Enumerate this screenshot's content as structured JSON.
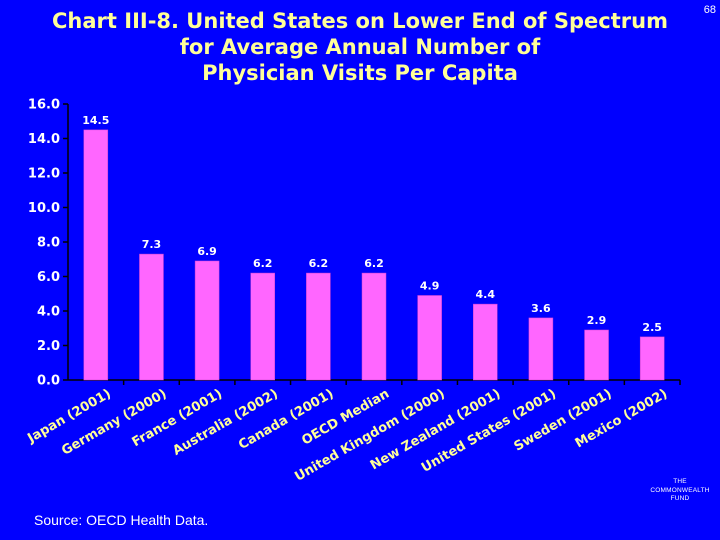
{
  "page_number": "68",
  "source": "Source: OECD Health Data.",
  "logo": {
    "line1": "THE",
    "line2": "COMMONWEALTH",
    "line3": "FUND"
  },
  "colors": {
    "background": "#0000ff",
    "bar": "#ff66ff",
    "title": "#ffff99",
    "category": "#ffff99",
    "axis": "#000000",
    "text": "#ffffff"
  },
  "chart_data": {
    "type": "bar",
    "title_lines": [
      "Chart III-8. United States on Lower End of Spectrum",
      "for Average Annual Number of",
      "Physician Visits Per Capita"
    ],
    "categories": [
      "Japan (2001)",
      "Germany (2000)",
      "France (2001)",
      "Australia (2002)",
      "Canada (2001)",
      "OECD Median",
      "United Kingdom (2000)",
      "New Zealand (2001)",
      "United States (2001)",
      "Sweden (2001)",
      "Mexico (2002)"
    ],
    "values": [
      14.5,
      7.3,
      6.9,
      6.2,
      6.2,
      6.2,
      4.9,
      4.4,
      3.6,
      2.9,
      2.5
    ],
    "value_labels": [
      "14.5",
      "7.3",
      "6.9",
      "6.2",
      "6.2",
      "6.2",
      "4.9",
      "4.4",
      "3.6",
      "2.9",
      "2.5"
    ],
    "ylim": [
      0,
      16
    ],
    "yticks": [
      "0.0",
      "2.0",
      "4.0",
      "6.0",
      "8.0",
      "10.0",
      "12.0",
      "14.0",
      "16.0"
    ],
    "xlabel": "",
    "ylabel": "",
    "grid": false,
    "legend": "none"
  }
}
